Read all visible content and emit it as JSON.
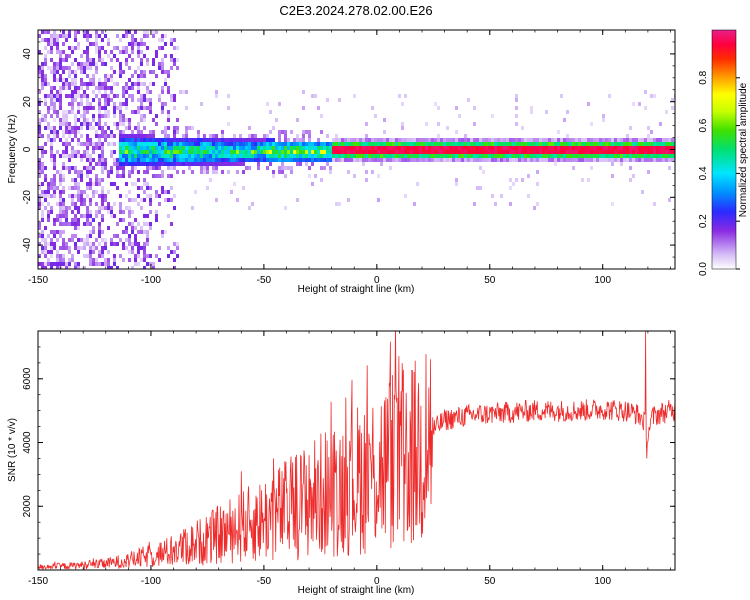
{
  "figure_title": "C2E3.2024.278.02.00.E26",
  "chart_data": [
    {
      "type": "heatmap",
      "xlabel": "Height of straight line (km)",
      "ylabel": "Frequency (Hz)",
      "xlim": [
        -150,
        132
      ],
      "ylim": [
        -50,
        50
      ],
      "xticks": [
        -150,
        -100,
        -50,
        0,
        50,
        100
      ],
      "yticks": [
        -40,
        -20,
        0,
        20,
        40
      ],
      "colorbar": {
        "label": "Normalized spectral amplitude",
        "range": [
          0,
          1
        ],
        "ticks": [
          "0.0",
          "0.2",
          "0.4",
          "0.6",
          "0.8"
        ],
        "colormap": [
          "#ffffff",
          "#c9a8f2",
          "#7b16e6",
          "#2020ff",
          "#00e5ff",
          "#00e000",
          "#ffff00",
          "#ff8000",
          "#ff0000",
          "#e0208c"
        ]
      },
      "features": {
        "noise_region_x": [
          -150,
          -88
        ],
        "signal_start_x": -115,
        "steady_line_start_x": -20,
        "line_frequency_hz": 0
      }
    },
    {
      "type": "line",
      "xlabel": "Height of straight line (km)",
      "ylabel": "SNR (10 * v/v)",
      "xlim": [
        -150,
        132
      ],
      "ylim": [
        0,
        7500
      ],
      "xticks": [
        -150,
        -100,
        -50,
        0,
        50,
        100
      ],
      "yticks": [
        2000,
        4000,
        6000
      ],
      "line_color": "#ee2a2a",
      "series": [
        {
          "x": [
            -150,
            -140,
            -130,
            -120,
            -110,
            -100,
            -90,
            -80,
            -70,
            -60,
            -50,
            -40,
            -30,
            -20,
            -10,
            -5,
            0,
            5,
            10,
            15,
            20,
            25,
            30,
            40,
            50,
            60,
            70,
            80,
            90,
            100,
            110,
            115,
            118,
            120,
            122,
            125,
            130
          ],
          "y": [
            100,
            120,
            150,
            200,
            300,
            450,
            600,
            850,
            1100,
            1350,
            1600,
            1900,
            2200,
            2500,
            2800,
            3000,
            3200,
            3350,
            3700,
            3500,
            3800,
            4400,
            4700,
            4850,
            4900,
            4950,
            5000,
            5000,
            5000,
            5050,
            5000,
            4900,
            4700,
            4300,
            4800,
            4900,
            5000
          ],
          "spikes": [
            [
              -60,
              3100
            ],
            [
              -30,
              3600
            ],
            [
              -12,
              4050
            ],
            [
              8,
              5350
            ],
            [
              12,
              900
            ],
            [
              119,
              7500
            ],
            [
              119.5,
              3500
            ]
          ]
        }
      ]
    }
  ]
}
